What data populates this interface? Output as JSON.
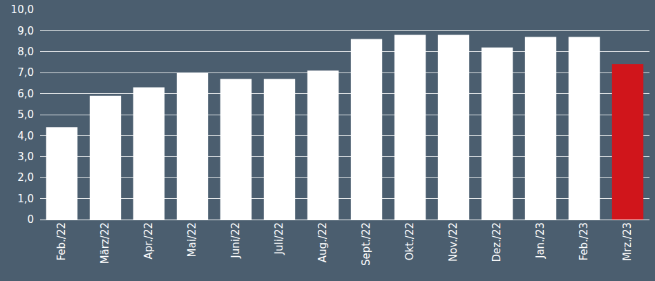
{
  "chart_data": {
    "type": "bar",
    "categories": [
      "Feb./22",
      "März/22",
      "Apr./22",
      "Mai/22",
      "Juni/22",
      "Juli/22",
      "Aug./22",
      "Sept./22",
      "Okt./22",
      "Nov./22",
      "Dez./22",
      "Jan./23",
      "Feb./23",
      "Mrz./23"
    ],
    "values": [
      4.4,
      5.9,
      6.3,
      7.0,
      6.7,
      6.7,
      7.1,
      8.6,
      8.8,
      8.8,
      8.2,
      8.7,
      8.7,
      7.4
    ],
    "colors": [
      "#ffffff",
      "#ffffff",
      "#ffffff",
      "#ffffff",
      "#ffffff",
      "#ffffff",
      "#ffffff",
      "#ffffff",
      "#ffffff",
      "#ffffff",
      "#ffffff",
      "#ffffff",
      "#ffffff",
      "#d0151b"
    ],
    "ylim": [
      0,
      10
    ],
    "yticks": [
      0,
      {
        "value": 1,
        "label": "1,0"
      },
      {
        "value": 2,
        "label": "2,0"
      },
      {
        "value": 3,
        "label": "3,0"
      },
      {
        "value": 4,
        "label": "4,0"
      },
      {
        "value": 5,
        "label": "5,0"
      },
      {
        "value": 6,
        "label": "6,0"
      },
      {
        "value": 7,
        "label": "7,0"
      },
      {
        "value": 8,
        "label": "8,0"
      },
      {
        "value": 9,
        "label": "9,0"
      },
      {
        "value": 10,
        "label": "10,0"
      }
    ],
    "grid": true
  }
}
